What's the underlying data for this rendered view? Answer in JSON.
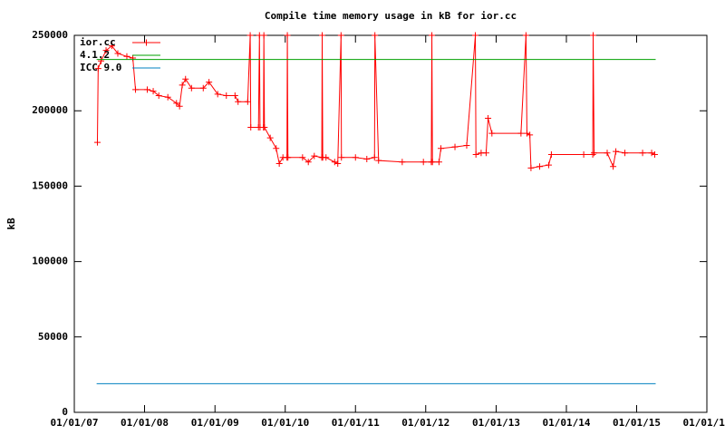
{
  "chart_data": {
    "type": "line",
    "title": "Compile time memory usage in kB for ior.cc",
    "ylabel": "kB",
    "xlim": [
      "2007-01-01",
      "2016-01-01"
    ],
    "xticks": [
      {
        "value": "2007-01-01",
        "label": "01/01/07"
      },
      {
        "value": "2008-01-01",
        "label": "01/01/08"
      },
      {
        "value": "2009-01-01",
        "label": "01/01/09"
      },
      {
        "value": "2010-01-01",
        "label": "01/01/10"
      },
      {
        "value": "2011-01-01",
        "label": "01/01/11"
      },
      {
        "value": "2012-01-01",
        "label": "01/01/12"
      },
      {
        "value": "2013-01-01",
        "label": "01/01/13"
      },
      {
        "value": "2014-01-01",
        "label": "01/01/14"
      },
      {
        "value": "2015-01-01",
        "label": "01/01/15"
      },
      {
        "value": "2016-01-01",
        "label": "01/01/16"
      }
    ],
    "ylim": [
      0,
      250000
    ],
    "yticks": [
      0,
      50000,
      100000,
      150000,
      200000,
      250000
    ],
    "legend": "top-left",
    "series": [
      {
        "name": "ior.cc",
        "color": "#ff0000",
        "markers": true,
        "x": [
          "2007-05-01",
          "2007-05-05",
          "2007-05-20",
          "2007-06-15",
          "2007-07-15",
          "2007-08-15",
          "2007-10-01",
          "2007-11-01",
          "2007-11-15",
          "2008-01-15",
          "2008-02-15",
          "2008-03-15",
          "2008-05-01",
          "2008-06-15",
          "2008-07-01",
          "2008-07-15",
          "2008-08-01",
          "2008-09-01",
          "2008-11-01",
          "2008-12-01",
          "2009-01-15",
          "2009-03-01",
          "2009-04-15",
          "2009-05-01",
          "2009-06-20",
          "2009-07-03",
          "2009-07-06",
          "2009-08-15",
          "2009-08-20",
          "2009-08-23",
          "2009-09-10",
          "2009-09-12",
          "2009-09-15",
          "2009-10-15",
          "2009-11-15",
          "2009-12-01",
          "2009-12-20",
          "2010-01-10",
          "2010-01-12",
          "2010-01-15",
          "2010-04-01",
          "2010-05-01",
          "2010-06-01",
          "2010-07-10",
          "2010-07-12",
          "2010-07-15",
          "2010-08-01",
          "2010-09-15",
          "2010-10-01",
          "2010-10-18",
          "2010-10-20",
          "2011-01-01",
          "2011-03-01",
          "2011-04-10",
          "2011-04-12",
          "2011-05-01",
          "2011-09-01",
          "2011-12-20",
          "2012-01-30",
          "2012-02-02",
          "2012-02-05",
          "2012-03-10",
          "2012-03-20",
          "2012-06-01",
          "2012-08-01",
          "2012-09-15",
          "2012-09-18",
          "2012-10-15",
          "2012-11-10",
          "2012-11-20",
          "2012-12-10",
          "2013-05-10",
          "2013-06-05",
          "2013-06-10",
          "2013-06-25",
          "2013-07-01",
          "2013-08-15",
          "2013-10-01",
          "2013-10-15",
          "2014-04-01",
          "2014-05-18",
          "2014-05-20",
          "2014-05-25",
          "2014-08-01",
          "2014-09-01",
          "2014-09-15",
          "2014-11-01",
          "2015-02-01",
          "2015-03-20",
          "2015-04-05"
        ],
        "values": [
          179000,
          228000,
          233000,
          240000,
          243000,
          238000,
          236000,
          235000,
          214000,
          214000,
          213000,
          210000,
          209000,
          205000,
          203000,
          217000,
          221000,
          215000,
          215000,
          219000,
          211000,
          210000,
          210000,
          206000,
          206000,
          250000,
          189000,
          189000,
          250000,
          189000,
          189000,
          250000,
          189000,
          182000,
          175000,
          165000,
          169000,
          169000,
          250000,
          169000,
          169000,
          166000,
          170000,
          169000,
          250000,
          169000,
          169000,
          166000,
          165000,
          250000,
          169000,
          169000,
          168000,
          169000,
          250000,
          167000,
          166000,
          166000,
          166000,
          250000,
          166000,
          166000,
          175000,
          176000,
          177000,
          250000,
          171000,
          172000,
          172000,
          195000,
          185000,
          185000,
          250000,
          185000,
          184000,
          162000,
          163000,
          164000,
          171000,
          171000,
          171000,
          250000,
          172000,
          172000,
          163000,
          173000,
          172000,
          172000,
          172000,
          171000
        ]
      },
      {
        "name": "4.1.2",
        "color": "#00a000",
        "x": [
          "2007-04-27",
          "2015-04-10"
        ],
        "values": [
          234000,
          234000
        ]
      },
      {
        "name": "ICC 9.0",
        "color": "#0080c0",
        "x": [
          "2007-04-27",
          "2015-04-10"
        ],
        "values": [
          19000,
          19000
        ]
      }
    ]
  }
}
